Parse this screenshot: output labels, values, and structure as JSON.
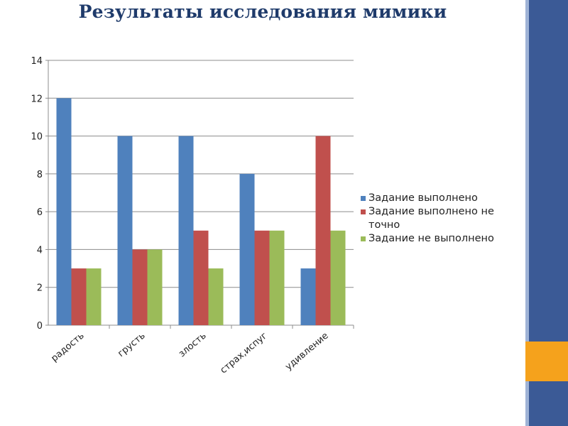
{
  "slide": {
    "title": "Результаты исследования мимики",
    "colors": {
      "band": "#3b5a96",
      "band_light": "#9fb3d6",
      "accent": "#f5a21c"
    }
  },
  "chart_data": {
    "type": "bar",
    "categories": [
      "радость",
      "грусть",
      "злость",
      "страх,испуг",
      "удивление"
    ],
    "series": [
      {
        "name": "Задание выполнено",
        "color": "#4f81bd",
        "values": [
          12,
          10,
          10,
          8,
          3
        ]
      },
      {
        "name": "Задание выполнено не точно",
        "color": "#c0504d",
        "values": [
          3,
          4,
          5,
          5,
          10
        ]
      },
      {
        "name": "Задание не выполнено",
        "color": "#9bbb59",
        "values": [
          3,
          4,
          3,
          5,
          5
        ]
      }
    ],
    "ylim": [
      0,
      14
    ],
    "yticks": [
      "0",
      "2",
      "4",
      "6",
      "8",
      "10",
      "12",
      "14"
    ],
    "grid": true,
    "legend_position": "right"
  }
}
